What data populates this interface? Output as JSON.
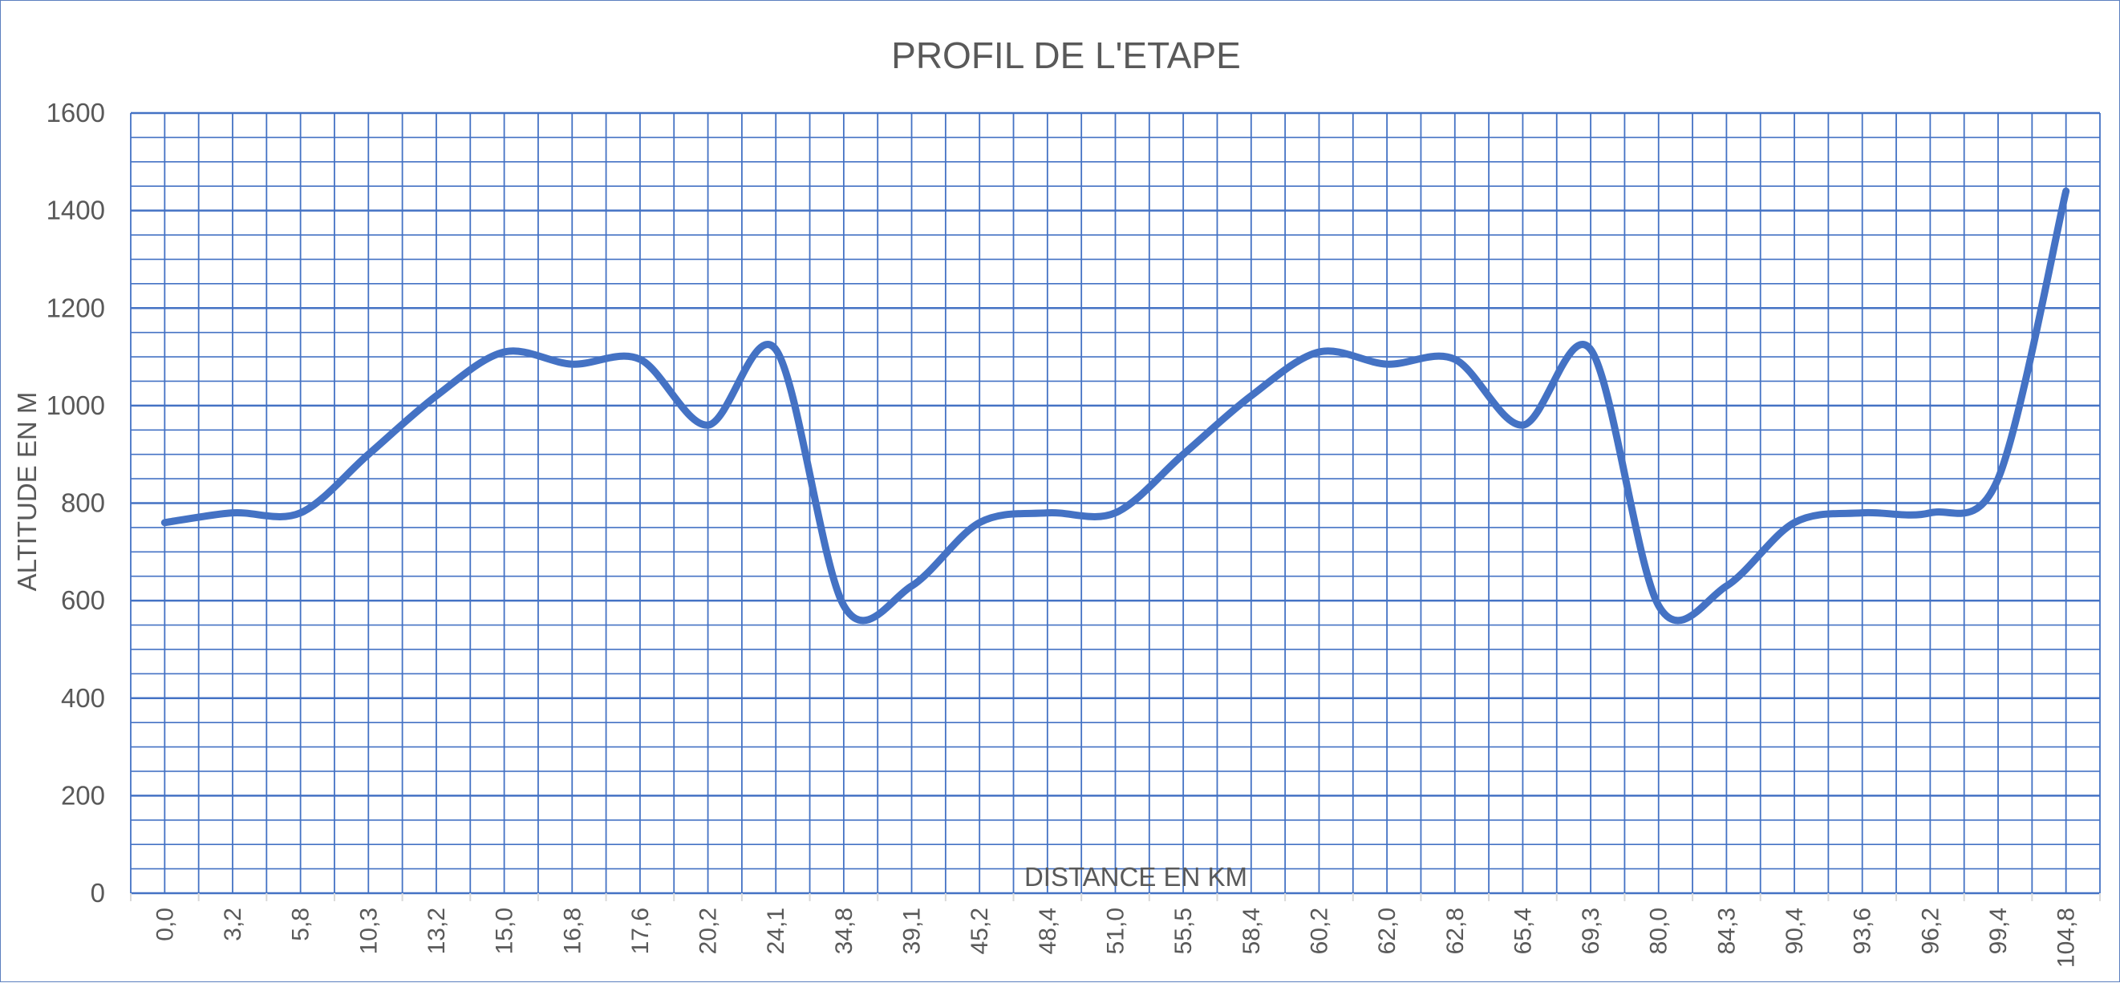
{
  "chart_data": {
    "type": "line",
    "title": "PROFIL DE L'ETAPE",
    "xlabel": "DISTANCE EN KM",
    "ylabel": "ALTITUDE EN M",
    "ylim": [
      0,
      1600
    ],
    "y_ticks": [
      "0",
      "200",
      "400",
      "600",
      "800",
      "1000",
      "1200",
      "1400",
      "1600"
    ],
    "grid": true,
    "legend": "none",
    "categories": [
      "0,0",
      "3,2",
      "5,8",
      "10,3",
      "13,2",
      "15,0",
      "16,8",
      "17,6",
      "20,2",
      "24,1",
      "34,8",
      "39,1",
      "45,2",
      "48,4",
      "51,0",
      "55,5",
      "58,4",
      "60,2",
      "62,0",
      "62,8",
      "65,4",
      "69,3",
      "80,0",
      "84,3",
      "90,4",
      "93,6",
      "96,2",
      "99,4",
      "104,8"
    ],
    "series": [
      {
        "color": "#4472c4",
        "values": [
          760,
          780,
          780,
          900,
          1020,
          1110,
          1085,
          1095,
          960,
          1115,
          590,
          630,
          760,
          780,
          780,
          900,
          1020,
          1110,
          1085,
          1095,
          960,
          1115,
          590,
          630,
          760,
          780,
          780,
          850,
          1440
        ]
      }
    ]
  }
}
